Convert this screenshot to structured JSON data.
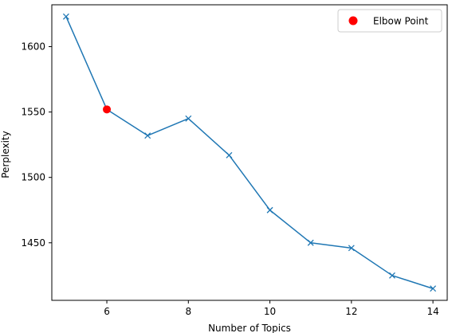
{
  "chart_data": {
    "type": "line",
    "title": "",
    "xlabel": "Number of Topics",
    "ylabel": "Perplexity",
    "xlim": [
      4.65,
      14.35
    ],
    "ylim": [
      1406,
      1632
    ],
    "xticks": [
      6,
      8,
      10,
      12,
      14
    ],
    "yticks": [
      1450,
      1500,
      1550,
      1600
    ],
    "grid": false,
    "series": [
      {
        "name": "",
        "color": "#1f77b4",
        "marker": "x",
        "x": [
          5,
          6,
          7,
          8,
          9,
          10,
          11,
          12,
          13,
          14
        ],
        "y": [
          1623,
          1552,
          1532,
          1545,
          1517,
          1475,
          1450,
          1446,
          1425,
          1415
        ]
      }
    ],
    "highlight": {
      "name": "Elbow Point",
      "color": "#ff0000",
      "x": 6,
      "y": 1552
    },
    "legend": {
      "placement": "top-right",
      "entries": [
        "Elbow Point"
      ]
    }
  }
}
